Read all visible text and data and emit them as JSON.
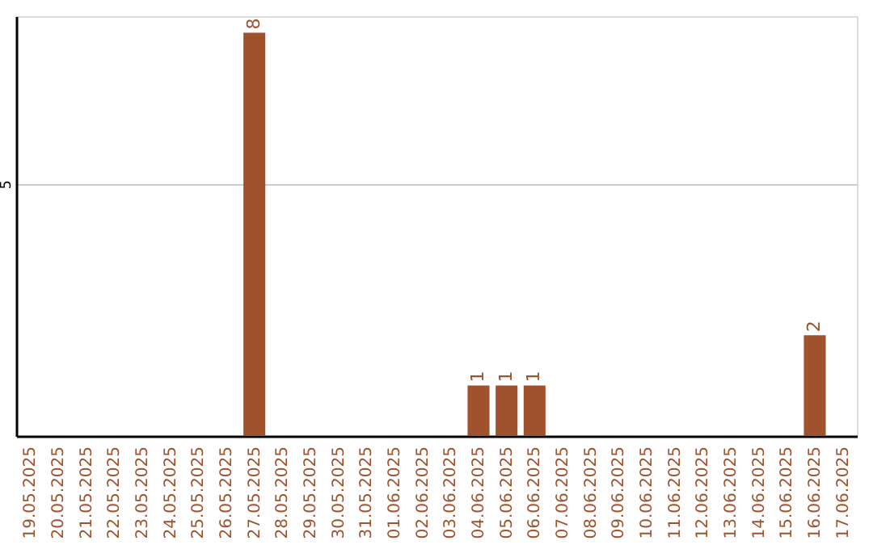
{
  "chart_data": {
    "type": "bar",
    "categories": [
      "19.05.2025",
      "20.05.2025",
      "21.05.2025",
      "22.05.2025",
      "23.05.2025",
      "24.05.2025",
      "25.05.2025",
      "26.05.2025",
      "27.05.2025",
      "28.05.2025",
      "29.05.2025",
      "30.05.2025",
      "31.05.2025",
      "01.06.2025",
      "02.06.2025",
      "03.06.2025",
      "04.06.2025",
      "05.06.2025",
      "06.06.2025",
      "07.06.2025",
      "08.06.2025",
      "09.06.2025",
      "10.06.2025",
      "11.06.2025",
      "12.06.2025",
      "13.06.2025",
      "14.06.2025",
      "15.06.2025",
      "16.06.2025",
      "17.06.2025"
    ],
    "values": [
      0,
      0,
      0,
      0,
      0,
      0,
      0,
      0,
      8,
      0,
      0,
      0,
      0,
      0,
      0,
      0,
      1,
      1,
      1,
      0,
      0,
      0,
      0,
      0,
      0,
      0,
      0,
      0,
      2,
      0
    ],
    "value_labels": [
      null,
      null,
      null,
      null,
      null,
      null,
      null,
      null,
      "8",
      null,
      null,
      null,
      null,
      null,
      null,
      null,
      "1",
      "1",
      "1",
      null,
      null,
      null,
      null,
      null,
      null,
      null,
      null,
      null,
      "2",
      null
    ],
    "color": "#a0522d",
    "ylim": [
      0,
      8.33
    ],
    "yticks": [
      {
        "value": 0,
        "label": null
      },
      5
    ],
    "grid": "y"
  }
}
